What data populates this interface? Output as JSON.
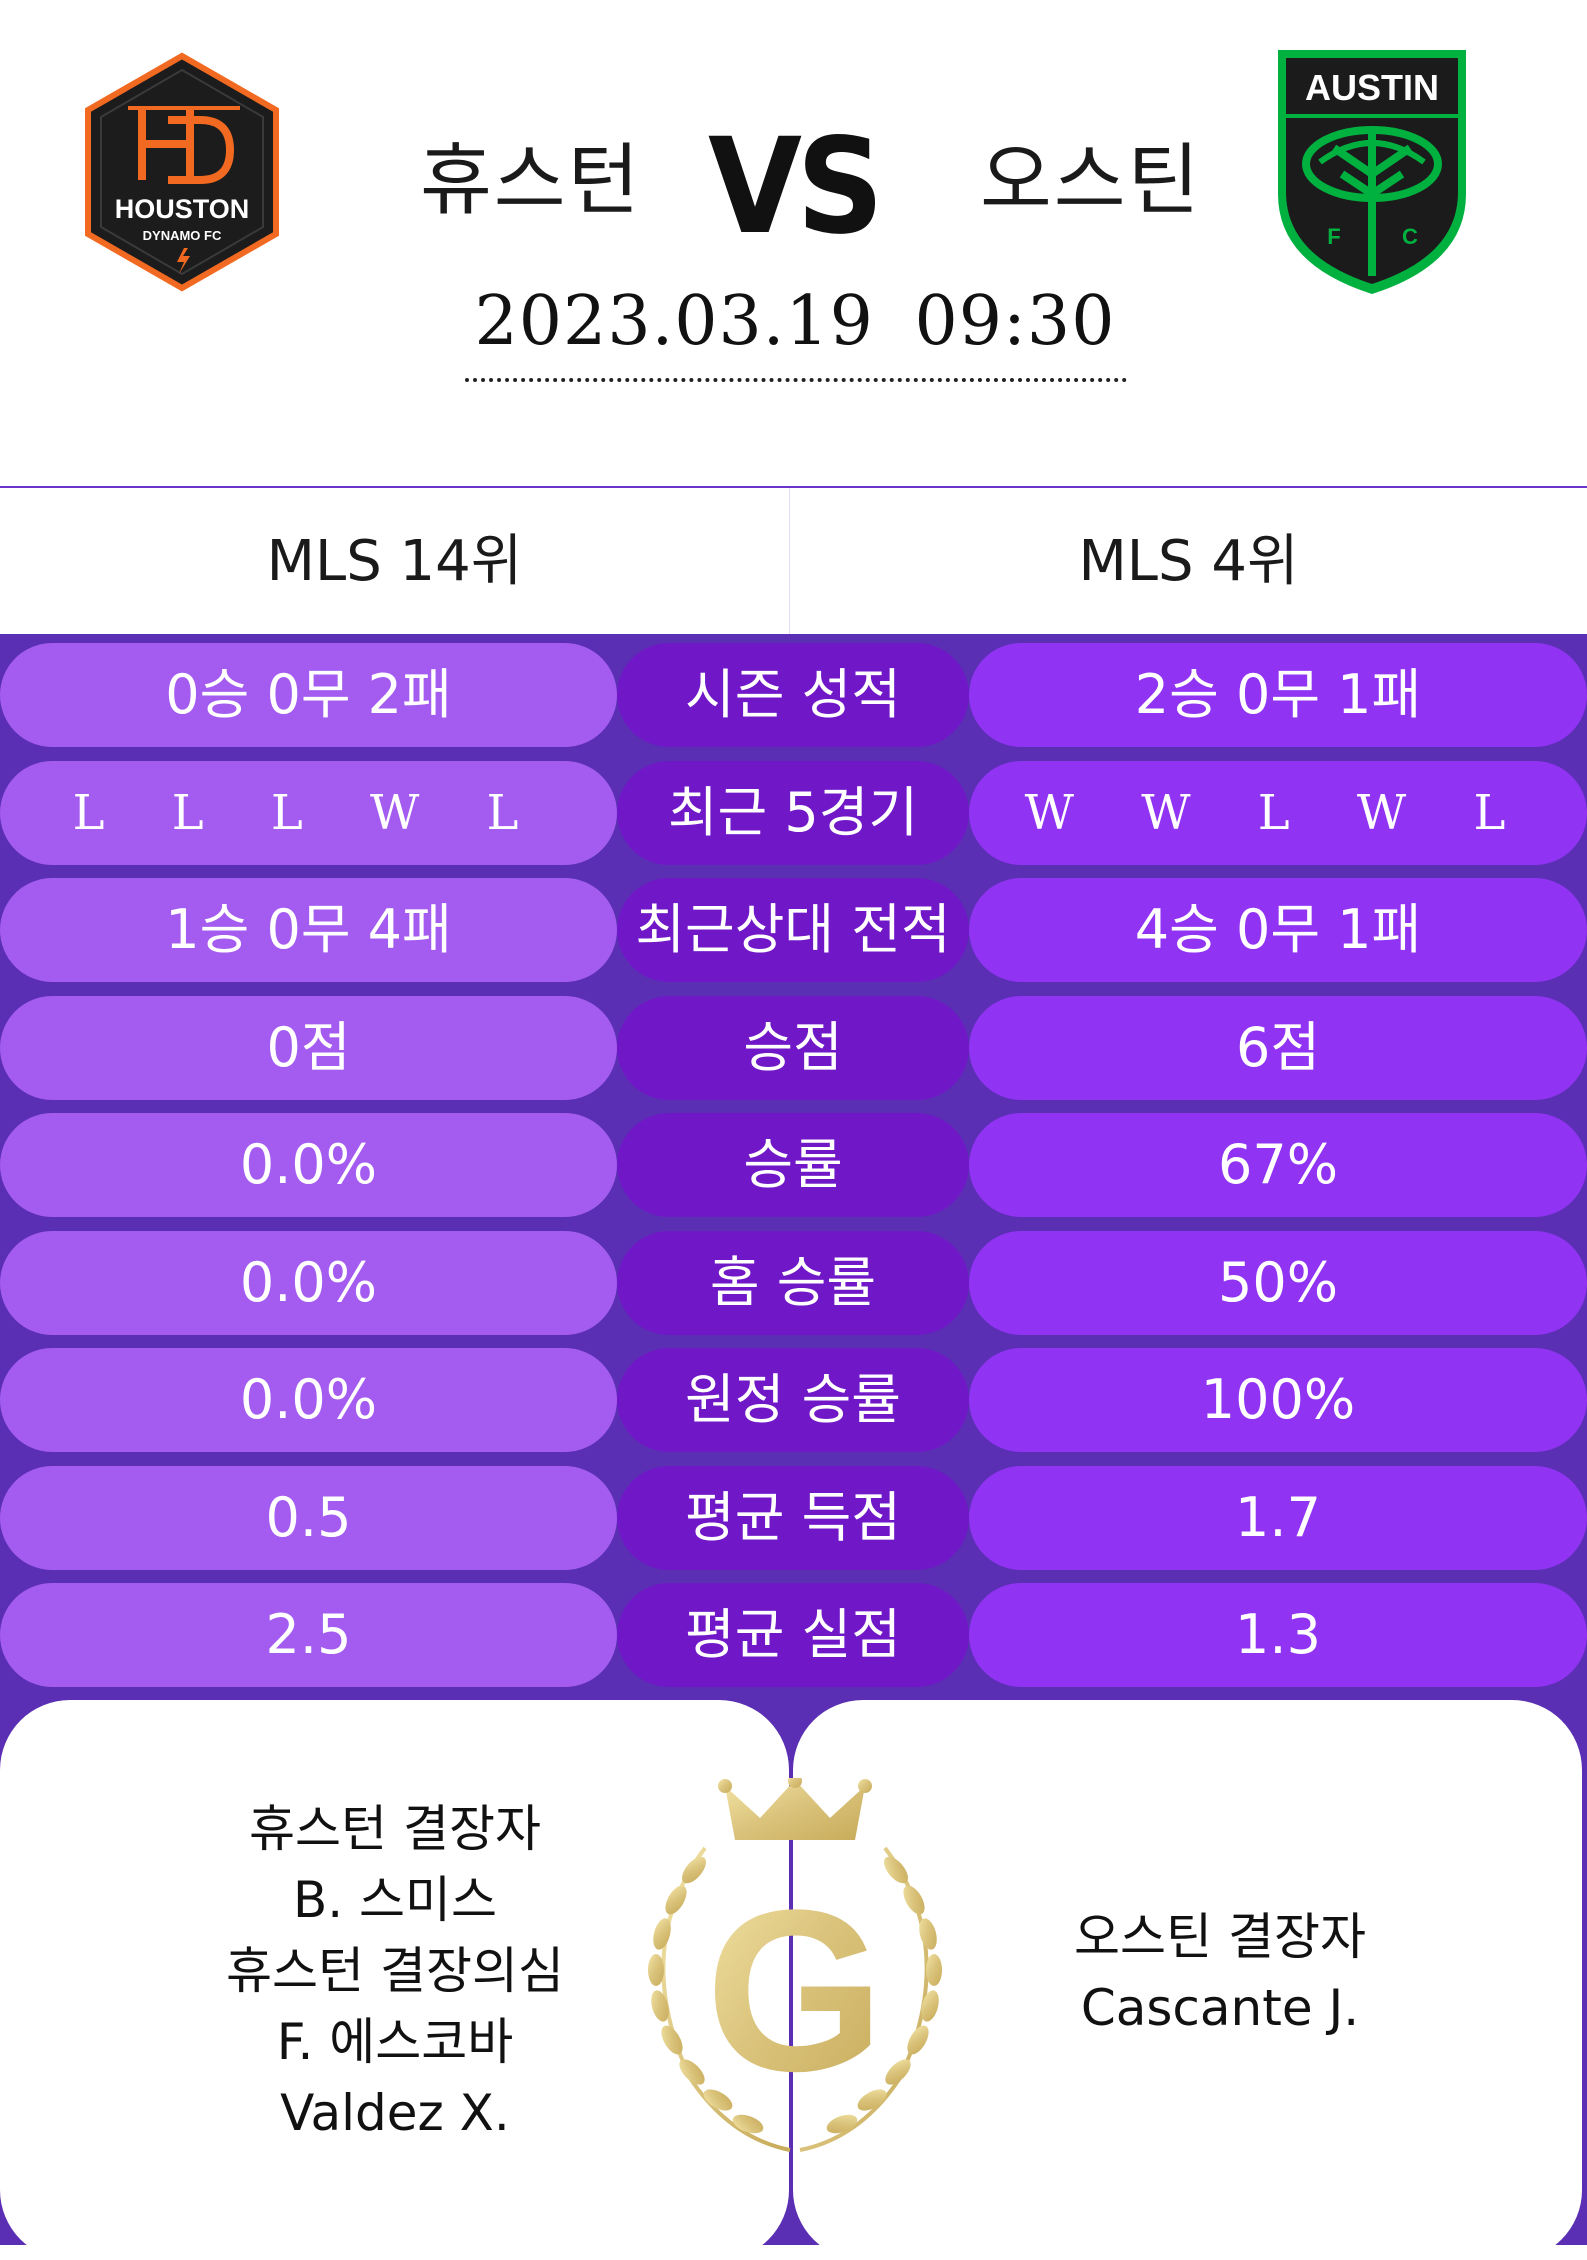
{
  "match": {
    "home_team": "휴스턴",
    "vs": "VS",
    "away_team": "오스틴",
    "datetime": "2023.03.19  09:30"
  },
  "logos": {
    "home": {
      "name": "houston-dynamo-logo",
      "text_top": "HOUSTON",
      "text_bottom": "DYNAMO FC",
      "colors": [
        "#1c1c1c",
        "#f26a21"
      ]
    },
    "away": {
      "name": "austin-fc-logo",
      "text": "AUSTIN",
      "letters": "F C",
      "colors": [
        "#1b1b1b",
        "#00b140"
      ]
    }
  },
  "ranks": {
    "home": "MLS 14위",
    "away": "MLS 4위"
  },
  "stats": [
    {
      "label": "시즌 성적",
      "home": "0승 0무 2패",
      "away": "2승 0무 1패"
    },
    {
      "label": "최근 5경기",
      "home": "L L L W L",
      "away": "W W L W L",
      "form": true
    },
    {
      "label": "최근상대 전적",
      "home": "1승 0무 4패",
      "away": "4승 0무 1패"
    },
    {
      "label": "승점",
      "home": "0점",
      "away": "6점"
    },
    {
      "label": "승률",
      "home": "0.0%",
      "away": "67%"
    },
    {
      "label": "홈 승률",
      "home": "0.0%",
      "away": "50%"
    },
    {
      "label": "원정 승률",
      "home": "0.0%",
      "away": "100%"
    },
    {
      "label": "평균 득점",
      "home": "0.5",
      "away": "1.7"
    },
    {
      "label": "평균 실점",
      "home": "2.5",
      "away": "1.3"
    }
  ],
  "absences": {
    "home": [
      "휴스턴 결장자",
      "B. 스미스",
      "휴스턴 결장의심",
      "F. 에스코바",
      "Valdez X."
    ],
    "away": [
      "오스틴 결장자",
      "Cascante J."
    ]
  },
  "crest": {
    "letter": "G",
    "color": "#d9c27a"
  },
  "colors": {
    "background": "#5a2fb3",
    "home_pill": "#a45cf0",
    "label_pill": "#7018c8",
    "away_pill": "#9033f2"
  }
}
